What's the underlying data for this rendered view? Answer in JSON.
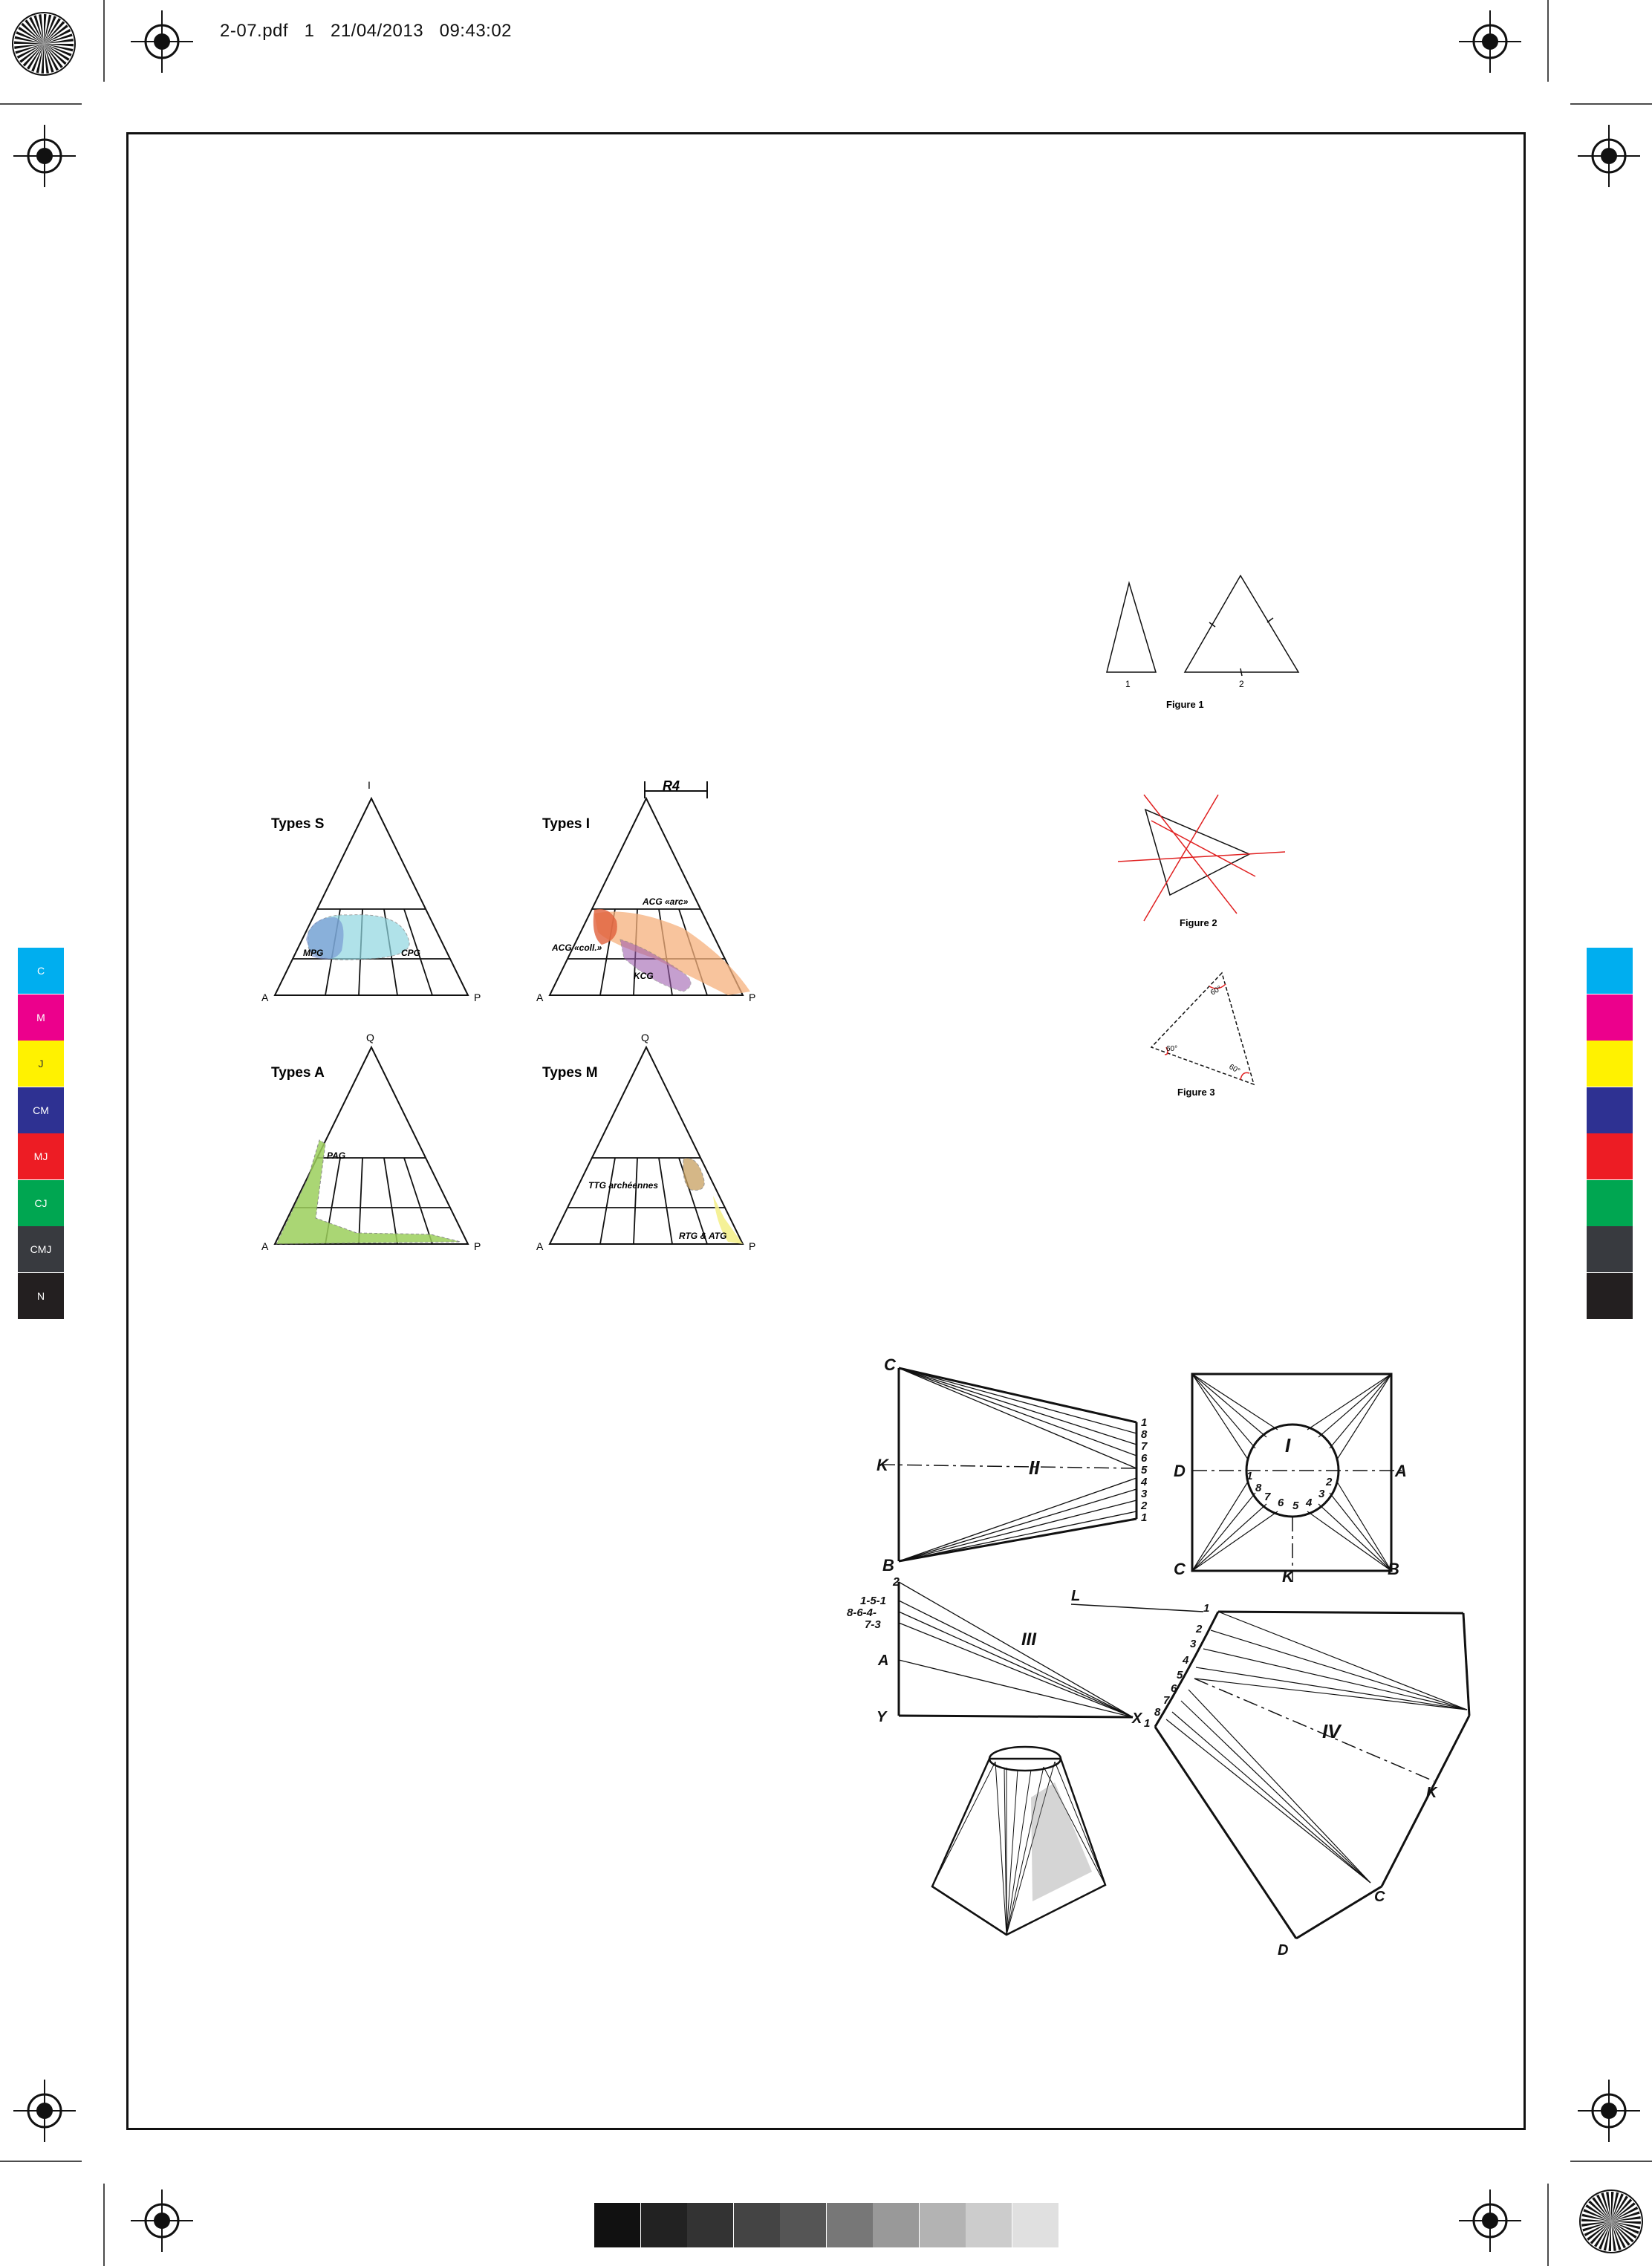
{
  "header": {
    "file": "2-07.pdf",
    "page": "1",
    "date": "21/04/2013",
    "time": "09:43:02"
  },
  "color_bar": [
    {
      "label": "C",
      "color": "#00aeef"
    },
    {
      "label": "M",
      "color": "#ec008c"
    },
    {
      "label": "J",
      "color": "#fff200"
    },
    {
      "label": "CM",
      "color": "#2e3192"
    },
    {
      "label": "MJ",
      "color": "#ed1c24"
    },
    {
      "label": "CJ",
      "color": "#00a651"
    },
    {
      "label": "CMJ",
      "color": "#383a3f"
    },
    {
      "label": "N",
      "color": "#231f20"
    }
  ],
  "gray_bar": [
    "#111111",
    "#222222",
    "#333333",
    "#444444",
    "#555555",
    "#777777",
    "#999999",
    "#b3b3b3",
    "#cccccc",
    "#e0e0e0"
  ],
  "qap": {
    "types_s": {
      "title": "Types S",
      "top": "I",
      "left": "A",
      "right": "P",
      "mpg": "MPG",
      "cpg": "CPG"
    },
    "types_i": {
      "title": "Types I",
      "top": "R4",
      "left": "A",
      "right": "P",
      "arc": "ACG «arc»",
      "coll": "ACG «coll.»",
      "kcg": "KCG"
    },
    "types_a": {
      "title": "Types A",
      "top": "Q",
      "left": "A",
      "right": "P",
      "pag": "PAG"
    },
    "types_m": {
      "title": "Types M",
      "top": "Q",
      "left": "A",
      "right": "P",
      "ttg": "TTG archéennes",
      "rtg": "RTG & ATG"
    }
  },
  "triangles": {
    "fig1": {
      "caption": "Figure 1",
      "label1": "1",
      "label2": "2"
    },
    "fig2": {
      "caption": "Figure 2"
    },
    "fig3": {
      "caption": "Figure 3",
      "a1": "60°",
      "a2": "60°",
      "a3": "60°"
    }
  },
  "development": {
    "fig2": {
      "numeral": "II",
      "c": "C",
      "k": "K",
      "b": "B",
      "nums": [
        "1",
        "8",
        "7",
        "6",
        "5",
        "4",
        "3",
        "2",
        "1"
      ]
    },
    "fig1": {
      "numeral": "I",
      "d": "D",
      "a": "A",
      "c": "C",
      "b": "B",
      "k": "K",
      "nums": [
        "1",
        "8",
        "7",
        "6",
        "5",
        "4",
        "3",
        "2"
      ]
    },
    "fig3": {
      "numeral": "III",
      "z": "2",
      "l1": "1-5-1",
      "l2": "8-6-4-",
      "l3": "7-3",
      "a": "A",
      "y": "Y",
      "x": "X"
    },
    "fig4": {
      "numeral": "IV",
      "l": "L",
      "k": "K",
      "c": "C",
      "d": "D",
      "nums": [
        "1",
        "2",
        "3",
        "4",
        "5",
        "6",
        "7",
        "8",
        "1"
      ]
    }
  }
}
